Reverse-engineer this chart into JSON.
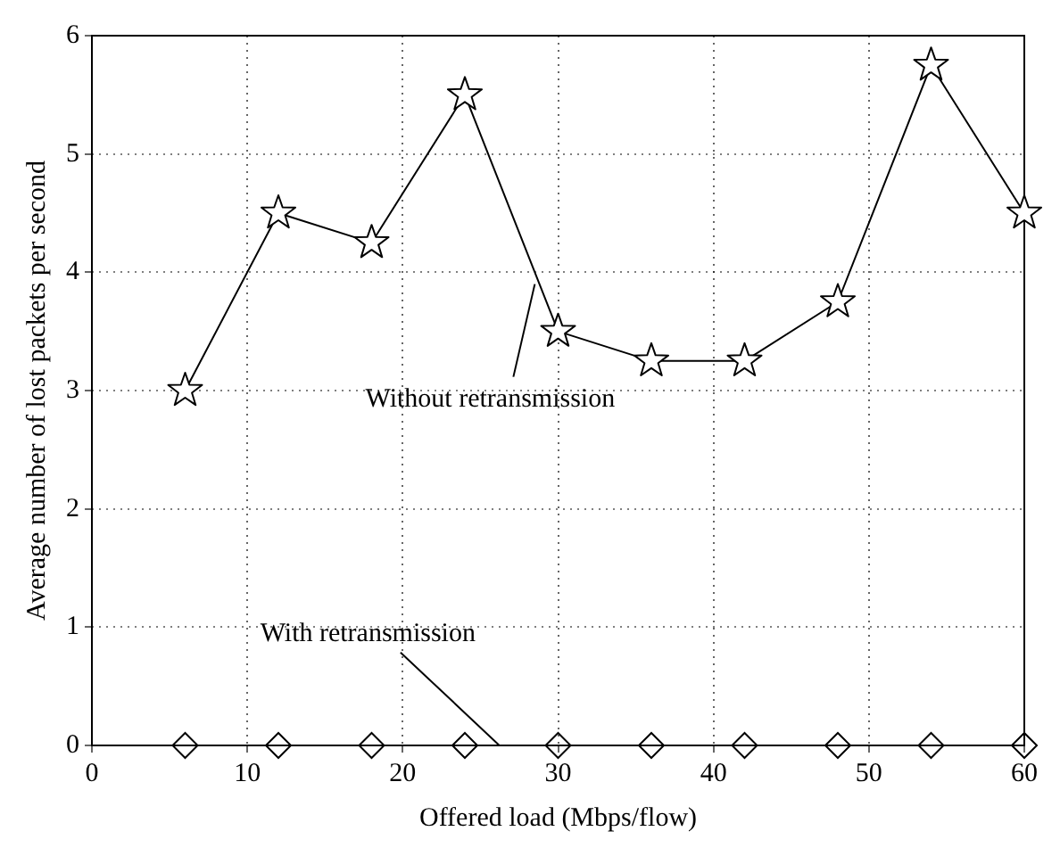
{
  "chart_data": {
    "type": "line",
    "xlabel": "Offered load (Mbps/flow)",
    "ylabel": "Average number of lost packets per second",
    "xlim": [
      0,
      60
    ],
    "xticks": [
      0,
      10,
      20,
      30,
      40,
      50,
      60
    ],
    "ylim": [
      0,
      6
    ],
    "yticks": [
      0,
      1,
      2,
      3,
      4,
      5,
      6
    ],
    "grid": true,
    "legend": false,
    "x": [
      6,
      12,
      18,
      24,
      30,
      36,
      42,
      48,
      54,
      60
    ],
    "series": [
      {
        "color": "#000000",
        "marker": "star",
        "values": [
          3,
          4.5,
          4.25,
          5.5,
          3.5,
          3.25,
          3.25,
          3.75,
          5.75,
          4.5
        ]
      },
      {
        "type": "scatter",
        "color": "#000000",
        "marker": "diamond",
        "values": [
          0,
          0,
          0,
          0,
          0,
          0,
          0,
          0,
          0,
          0
        ]
      }
    ],
    "annotations": [
      {
        "text": "Without retransmission",
        "x": 28.5,
        "y": 3.9
      },
      "With retransmission"
    ]
  }
}
